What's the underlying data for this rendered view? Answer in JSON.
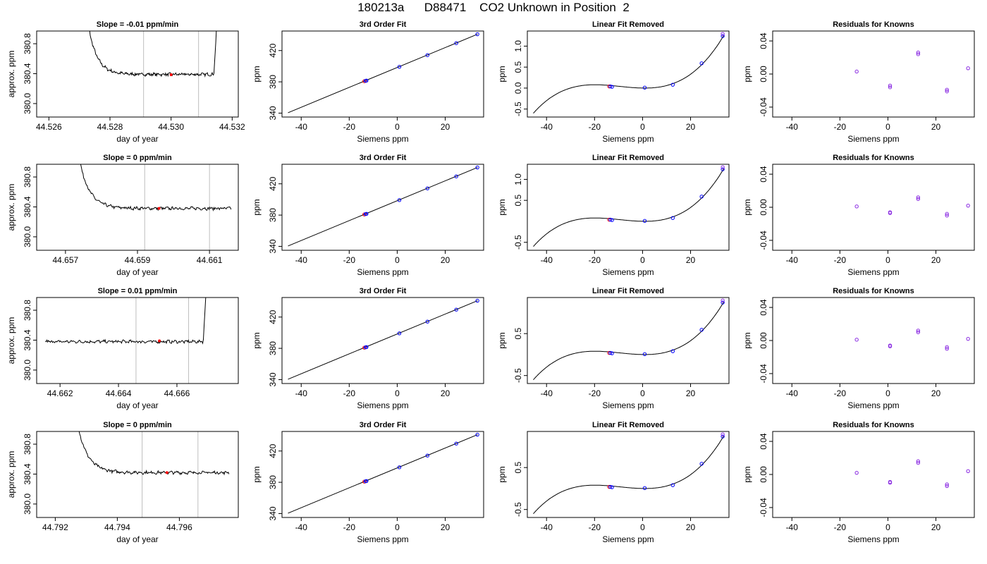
{
  "page_title": "180213a      D88471    CO2 Unknown in Position  2",
  "colors": {
    "line": "#000000",
    "point_blue": "#0000ff",
    "point_red": "#ff0000",
    "point_purple": "#8a2be2",
    "vline": "#bebebe"
  },
  "chart_data": [
    {
      "type": "line",
      "panel": "timeseries",
      "title": "Slope =  -0.01  ppm/min",
      "xlabel": "day of year",
      "ylabel": "approx. ppm",
      "xlim": [
        44.5256,
        44.5322
      ],
      "ylim": [
        379.82,
        380.97
      ],
      "xticks": [
        44.526,
        44.528,
        44.53,
        44.532
      ],
      "xtick_labels": [
        "44.526",
        "44.528",
        "44.530",
        "44.532"
      ],
      "yticks": [
        380.0,
        380.4,
        380.8
      ],
      "ytick_labels": [
        "380.0",
        "380.4",
        "380.8"
      ],
      "shape": "both",
      "x_start": 44.5271,
      "x_end": 44.5316,
      "x_spike_end": 44.5314,
      "baseline": 380.39,
      "vlines": [
        44.5291,
        44.5309
      ],
      "marker": {
        "x": 44.53,
        "y": 380.385
      }
    },
    {
      "type": "line",
      "panel": "cubic_fit",
      "title": "3rd Order Fit",
      "xlabel": "Siemens ppm",
      "ylabel": "ppm",
      "xlim": [
        -48,
        36
      ],
      "ylim": [
        335,
        445
      ],
      "xticks": [
        -40,
        -20,
        0,
        20
      ],
      "xtick_labels": [
        "-40",
        "-20",
        "0",
        "20"
      ],
      "yticks": [
        340,
        380,
        420
      ],
      "ytick_labels": [
        "340",
        "380",
        "420"
      ],
      "line": {
        "x": [
          -45.5,
          33.5
        ],
        "y": [
          340.5,
          441
        ]
      },
      "points": [
        {
          "x": -13.7,
          "y": 380.8,
          "color": "red"
        },
        {
          "x": -13.2,
          "y": 381.3,
          "color": "blue"
        },
        {
          "x": -12.8,
          "y": 381.6,
          "color": "blue"
        },
        {
          "x": 0.9,
          "y": 399.2,
          "color": "blue"
        },
        {
          "x": 12.6,
          "y": 414.2,
          "color": "blue"
        },
        {
          "x": 24.6,
          "y": 429.5,
          "color": "blue"
        },
        {
          "x": 33.4,
          "y": 440.9,
          "color": "blue"
        }
      ]
    },
    {
      "type": "line",
      "panel": "linear_removed",
      "title": "Linear Fit Removed",
      "xlabel": "Siemens ppm",
      "ylabel": "ppm",
      "xlim": [
        -48,
        36
      ],
      "ylim": [
        -0.69,
        1.36
      ],
      "xticks": [
        -40,
        -20,
        0,
        20
      ],
      "xtick_labels": [
        "-40",
        "-20",
        "0",
        "20"
      ],
      "yticks": [
        -0.5,
        0,
        0.5,
        1.0
      ],
      "ytick_labels": [
        "-0.5",
        "0.0",
        "0.5",
        "1.0"
      ],
      "curve": {
        "x0": -45.5,
        "x1": 33.8,
        "y0": -0.6,
        "ymax": 0.06,
        "ymid": 0.0,
        "y1": 1.25
      },
      "points": [
        {
          "x": -13.9,
          "y": 0.04,
          "color": "red"
        },
        {
          "x": -13.4,
          "y": 0.04,
          "color": "blue"
        },
        {
          "x": -12.7,
          "y": 0.03,
          "color": "blue"
        },
        {
          "x": 0.9,
          "y": 0.01,
          "color": "blue"
        },
        {
          "x": 12.6,
          "y": 0.08,
          "color": "blue"
        },
        {
          "x": 24.6,
          "y": 0.59,
          "color": "blue"
        },
        {
          "x": 33.4,
          "y": 1.24,
          "color": "blue"
        },
        {
          "x": 33.4,
          "y": 1.29,
          "color": "purple"
        }
      ]
    },
    {
      "type": "scatter",
      "panel": "residuals",
      "title": "Residuals for Knowns",
      "xlabel": "Siemens ppm",
      "ylabel": "ppm",
      "xlim": [
        -48,
        36
      ],
      "ylim": [
        -0.052,
        0.052
      ],
      "xticks": [
        -40,
        -20,
        0,
        20
      ],
      "xtick_labels": [
        "-40",
        "-20",
        "0",
        "20"
      ],
      "yticks": [
        -0.04,
        0.0,
        0.04
      ],
      "ytick_labels": [
        "-0.04",
        "0.00",
        "0.04"
      ],
      "points": [
        {
          "x": -13.0,
          "y": 0.003
        },
        {
          "x": 0.9,
          "y": -0.014
        },
        {
          "x": 0.9,
          "y": -0.016
        },
        {
          "x": 12.6,
          "y": 0.024
        },
        {
          "x": 12.6,
          "y": 0.026
        },
        {
          "x": 24.6,
          "y": -0.019
        },
        {
          "x": 24.6,
          "y": -0.021
        },
        {
          "x": 33.4,
          "y": 0.007
        }
      ]
    },
    {
      "type": "line",
      "panel": "timeseries",
      "title": "Slope =  0  ppm/min",
      "xlabel": "day of year",
      "ylabel": "approx. ppm",
      "xlim": [
        44.6562,
        44.6618
      ],
      "ylim": [
        379.82,
        380.97
      ],
      "xticks": [
        44.657,
        44.659,
        44.661
      ],
      "xtick_labels": [
        "44.657",
        "44.659",
        "44.661"
      ],
      "yticks": [
        380.0,
        380.4,
        380.8
      ],
      "ytick_labels": [
        "380.0",
        "380.4",
        "380.8"
      ],
      "shape": "left",
      "x_start": 44.6572,
      "x_end": 44.6616,
      "baseline": 380.38,
      "vlines": [
        44.6592,
        44.661
      ],
      "marker": {
        "x": 44.6596,
        "y": 380.38
      }
    },
    {
      "type": "line",
      "panel": "cubic_fit",
      "title": "3rd Order Fit",
      "xlabel": "Siemens ppm",
      "ylabel": "ppm",
      "xlim": [
        -48,
        36
      ],
      "ylim": [
        335,
        445
      ],
      "xticks": [
        -40,
        -20,
        0,
        20
      ],
      "xtick_labels": [
        "-40",
        "-20",
        "0",
        "20"
      ],
      "yticks": [
        340,
        380,
        420
      ],
      "ytick_labels": [
        "340",
        "380",
        "420"
      ],
      "line": {
        "x": [
          -45.5,
          33.5
        ],
        "y": [
          340.5,
          441
        ]
      },
      "points": [
        {
          "x": -13.7,
          "y": 380.8,
          "color": "red"
        },
        {
          "x": -13.2,
          "y": 381.3,
          "color": "blue"
        },
        {
          "x": -12.8,
          "y": 381.6,
          "color": "blue"
        },
        {
          "x": 0.9,
          "y": 399.2,
          "color": "blue"
        },
        {
          "x": 12.6,
          "y": 414.2,
          "color": "blue"
        },
        {
          "x": 24.6,
          "y": 429.5,
          "color": "blue"
        },
        {
          "x": 33.4,
          "y": 440.9,
          "color": "blue"
        }
      ]
    },
    {
      "type": "line",
      "panel": "linear_removed",
      "title": "Linear Fit Removed",
      "xlabel": "Siemens ppm",
      "ylabel": "ppm",
      "xlim": [
        -48,
        36
      ],
      "ylim": [
        -0.69,
        1.36
      ],
      "xticks": [
        -40,
        -20,
        0,
        20
      ],
      "xtick_labels": [
        "-40",
        "-20",
        "0",
        "20"
      ],
      "yticks": [
        -0.5,
        0.5,
        1.0
      ],
      "ytick_labels": [
        "-0.5",
        "0.5",
        "1.0"
      ],
      "curve": {
        "x0": -45.5,
        "x1": 33.8,
        "y0": -0.6,
        "ymax": 0.06,
        "ymid": 0.0,
        "y1": 1.25
      },
      "points": [
        {
          "x": -13.9,
          "y": 0.04,
          "color": "red"
        },
        {
          "x": -13.4,
          "y": 0.04,
          "color": "blue"
        },
        {
          "x": -12.7,
          "y": 0.03,
          "color": "blue"
        },
        {
          "x": 0.9,
          "y": 0.01,
          "color": "blue"
        },
        {
          "x": 12.6,
          "y": 0.08,
          "color": "blue"
        },
        {
          "x": 24.6,
          "y": 0.59,
          "color": "blue"
        },
        {
          "x": 33.4,
          "y": 1.24,
          "color": "blue"
        },
        {
          "x": 33.4,
          "y": 1.29,
          "color": "purple"
        }
      ]
    },
    {
      "type": "scatter",
      "panel": "residuals",
      "title": "Residuals for Knowns",
      "xlabel": "Siemens ppm",
      "ylabel": "ppm",
      "xlim": [
        -48,
        36
      ],
      "ylim": [
        -0.052,
        0.052
      ],
      "xticks": [
        -40,
        -20,
        0,
        20
      ],
      "xtick_labels": [
        "-40",
        "-20",
        "0",
        "20"
      ],
      "yticks": [
        -0.04,
        0.0,
        0.04
      ],
      "ytick_labels": [
        "-0.04",
        "0.00",
        "0.04"
      ],
      "points": [
        {
          "x": -13.0,
          "y": 0.001
        },
        {
          "x": 0.9,
          "y": -0.006
        },
        {
          "x": 0.9,
          "y": -0.007
        },
        {
          "x": 12.6,
          "y": 0.01
        },
        {
          "x": 12.6,
          "y": 0.012
        },
        {
          "x": 24.6,
          "y": -0.008
        },
        {
          "x": 24.6,
          "y": -0.01
        },
        {
          "x": 33.4,
          "y": 0.002
        }
      ]
    },
    {
      "type": "line",
      "panel": "timeseries",
      "title": "Slope =  0.01  ppm/min",
      "xlabel": "day of year",
      "ylabel": "approx. ppm",
      "xlim": [
        44.6612,
        44.6681
      ],
      "ylim": [
        379.82,
        380.97
      ],
      "xticks": [
        44.662,
        44.664,
        44.666
      ],
      "xtick_labels": [
        "44.662",
        "44.664",
        "44.666"
      ],
      "yticks": [
        380.0,
        380.4,
        380.8
      ],
      "ytick_labels": [
        "380.0",
        "380.4",
        "380.8"
      ],
      "shape": "right",
      "x_start": 44.6615,
      "x_end": 44.6671,
      "x_spike_start": 44.6669,
      "baseline": 380.38,
      "vlines": [
        44.6646,
        44.6664
      ],
      "marker": {
        "x": 44.6654,
        "y": 380.39
      }
    },
    {
      "type": "line",
      "panel": "cubic_fit",
      "title": "3rd Order Fit",
      "xlabel": "Siemens ppm",
      "ylabel": "ppm",
      "xlim": [
        -48,
        36
      ],
      "ylim": [
        335,
        445
      ],
      "xticks": [
        -40,
        -20,
        0,
        20
      ],
      "xtick_labels": [
        "-40",
        "-20",
        "0",
        "20"
      ],
      "yticks": [
        340,
        380,
        420
      ],
      "ytick_labels": [
        "340",
        "380",
        "420"
      ],
      "line": {
        "x": [
          -45.5,
          33.5
        ],
        "y": [
          340.5,
          441
        ]
      },
      "points": [
        {
          "x": -13.7,
          "y": 380.8,
          "color": "red"
        },
        {
          "x": -13.2,
          "y": 381.3,
          "color": "blue"
        },
        {
          "x": -12.8,
          "y": 381.6,
          "color": "blue"
        },
        {
          "x": 0.9,
          "y": 399.2,
          "color": "blue"
        },
        {
          "x": 12.6,
          "y": 414.2,
          "color": "blue"
        },
        {
          "x": 24.6,
          "y": 429.5,
          "color": "blue"
        },
        {
          "x": 33.4,
          "y": 440.9,
          "color": "blue"
        }
      ]
    },
    {
      "type": "line",
      "panel": "linear_removed",
      "title": "Linear Fit Removed",
      "xlabel": "Siemens ppm",
      "ylabel": "ppm",
      "xlim": [
        -48,
        36
      ],
      "ylim": [
        -0.69,
        1.36
      ],
      "xticks": [
        -40,
        -20,
        0,
        20
      ],
      "xtick_labels": [
        "-40",
        "-20",
        "0",
        "20"
      ],
      "yticks": [
        -0.5,
        0.5
      ],
      "ytick_labels": [
        "-0.5",
        "0.5"
      ],
      "curve": {
        "x0": -45.5,
        "x1": 33.8,
        "y0": -0.6,
        "ymax": 0.06,
        "ymid": 0.0,
        "y1": 1.25
      },
      "points": [
        {
          "x": -13.9,
          "y": 0.04,
          "color": "red"
        },
        {
          "x": -13.4,
          "y": 0.04,
          "color": "blue"
        },
        {
          "x": -12.7,
          "y": 0.03,
          "color": "blue"
        },
        {
          "x": 0.9,
          "y": 0.01,
          "color": "blue"
        },
        {
          "x": 12.6,
          "y": 0.08,
          "color": "blue"
        },
        {
          "x": 24.6,
          "y": 0.59,
          "color": "blue"
        },
        {
          "x": 33.4,
          "y": 1.24,
          "color": "blue"
        },
        {
          "x": 33.4,
          "y": 1.29,
          "color": "purple"
        }
      ]
    },
    {
      "type": "scatter",
      "panel": "residuals",
      "title": "Residuals for Knowns",
      "xlabel": "Siemens ppm",
      "ylabel": "ppm",
      "xlim": [
        -48,
        36
      ],
      "ylim": [
        -0.052,
        0.052
      ],
      "xticks": [
        -40,
        -20,
        0,
        20
      ],
      "xtick_labels": [
        "-40",
        "-20",
        "0",
        "20"
      ],
      "yticks": [
        -0.04,
        0.0,
        0.04
      ],
      "ytick_labels": [
        "-0.04",
        "0.00",
        "0.04"
      ],
      "points": [
        {
          "x": -13.0,
          "y": 0.001
        },
        {
          "x": 0.9,
          "y": -0.006
        },
        {
          "x": 0.9,
          "y": -0.007
        },
        {
          "x": 12.6,
          "y": 0.01
        },
        {
          "x": 12.6,
          "y": 0.012
        },
        {
          "x": 24.6,
          "y": -0.008
        },
        {
          "x": 24.6,
          "y": -0.01
        },
        {
          "x": 33.4,
          "y": 0.002
        }
      ]
    },
    {
      "type": "line",
      "panel": "timeseries",
      "title": "Slope =  0  ppm/min",
      "xlabel": "day of year",
      "ylabel": "approx. ppm",
      "xlim": [
        44.7914,
        44.7979
      ],
      "ylim": [
        379.82,
        380.97
      ],
      "xticks": [
        44.792,
        44.794,
        44.796
      ],
      "xtick_labels": [
        "44.792",
        "44.794",
        "44.796"
      ],
      "yticks": [
        380.0,
        380.4,
        380.8
      ],
      "ytick_labels": [
        "380.0",
        "380.4",
        "380.8"
      ],
      "shape": "left",
      "x_start": 44.7925,
      "x_end": 44.7976,
      "baseline": 380.42,
      "vlines": [
        44.7948,
        44.7966
      ],
      "marker": {
        "x": 44.7956,
        "y": 380.42
      }
    },
    {
      "type": "line",
      "panel": "cubic_fit",
      "title": "3rd Order Fit",
      "xlabel": "Siemens ppm",
      "ylabel": "ppm",
      "xlim": [
        -48,
        36
      ],
      "ylim": [
        335,
        445
      ],
      "xticks": [
        -40,
        -20,
        0,
        20
      ],
      "xtick_labels": [
        "-40",
        "-20",
        "0",
        "20"
      ],
      "yticks": [
        340,
        380,
        420
      ],
      "ytick_labels": [
        "340",
        "380",
        "420"
      ],
      "line": {
        "x": [
          -45.5,
          33.5
        ],
        "y": [
          340.5,
          441
        ]
      },
      "points": [
        {
          "x": -13.7,
          "y": 380.8,
          "color": "red"
        },
        {
          "x": -13.2,
          "y": 381.3,
          "color": "blue"
        },
        {
          "x": -12.8,
          "y": 381.6,
          "color": "blue"
        },
        {
          "x": 0.9,
          "y": 399.2,
          "color": "blue"
        },
        {
          "x": 12.6,
          "y": 414.2,
          "color": "blue"
        },
        {
          "x": 24.6,
          "y": 429.5,
          "color": "blue"
        },
        {
          "x": 33.4,
          "y": 440.9,
          "color": "blue"
        }
      ]
    },
    {
      "type": "line",
      "panel": "linear_removed",
      "title": "Linear Fit Removed",
      "xlabel": "Siemens ppm",
      "ylabel": "ppm",
      "xlim": [
        -48,
        36
      ],
      "ylim": [
        -0.69,
        1.36
      ],
      "xticks": [
        -40,
        -20,
        0,
        20
      ],
      "xtick_labels": [
        "-40",
        "-20",
        "0",
        "20"
      ],
      "yticks": [
        -0.5,
        0.5
      ],
      "ytick_labels": [
        "-0.5",
        "0.5"
      ],
      "curve": {
        "x0": -45.5,
        "x1": 33.8,
        "y0": -0.6,
        "ymax": 0.06,
        "ymid": 0.0,
        "y1": 1.25
      },
      "points": [
        {
          "x": -13.9,
          "y": 0.04,
          "color": "red"
        },
        {
          "x": -13.4,
          "y": 0.04,
          "color": "blue"
        },
        {
          "x": -12.7,
          "y": 0.03,
          "color": "blue"
        },
        {
          "x": 0.9,
          "y": 0.01,
          "color": "blue"
        },
        {
          "x": 12.6,
          "y": 0.08,
          "color": "blue"
        },
        {
          "x": 24.6,
          "y": 0.59,
          "color": "blue"
        },
        {
          "x": 33.4,
          "y": 1.24,
          "color": "blue"
        },
        {
          "x": 33.4,
          "y": 1.29,
          "color": "purple"
        }
      ]
    },
    {
      "type": "scatter",
      "panel": "residuals",
      "title": "Residuals for Knowns",
      "xlabel": "Siemens ppm",
      "ylabel": "ppm",
      "xlim": [
        -48,
        36
      ],
      "ylim": [
        -0.052,
        0.052
      ],
      "xticks": [
        -40,
        -20,
        0,
        20
      ],
      "xtick_labels": [
        "-40",
        "-20",
        "0",
        "20"
      ],
      "yticks": [
        -0.04,
        0.0,
        0.04
      ],
      "ytick_labels": [
        "-0.04",
        "0.00",
        "0.04"
      ],
      "points": [
        {
          "x": -13.0,
          "y": 0.002
        },
        {
          "x": 0.9,
          "y": -0.009
        },
        {
          "x": 0.9,
          "y": -0.01
        },
        {
          "x": 12.6,
          "y": 0.014
        },
        {
          "x": 12.6,
          "y": 0.016
        },
        {
          "x": 24.6,
          "y": -0.012
        },
        {
          "x": 24.6,
          "y": -0.014
        },
        {
          "x": 33.4,
          "y": 0.004
        }
      ]
    }
  ]
}
